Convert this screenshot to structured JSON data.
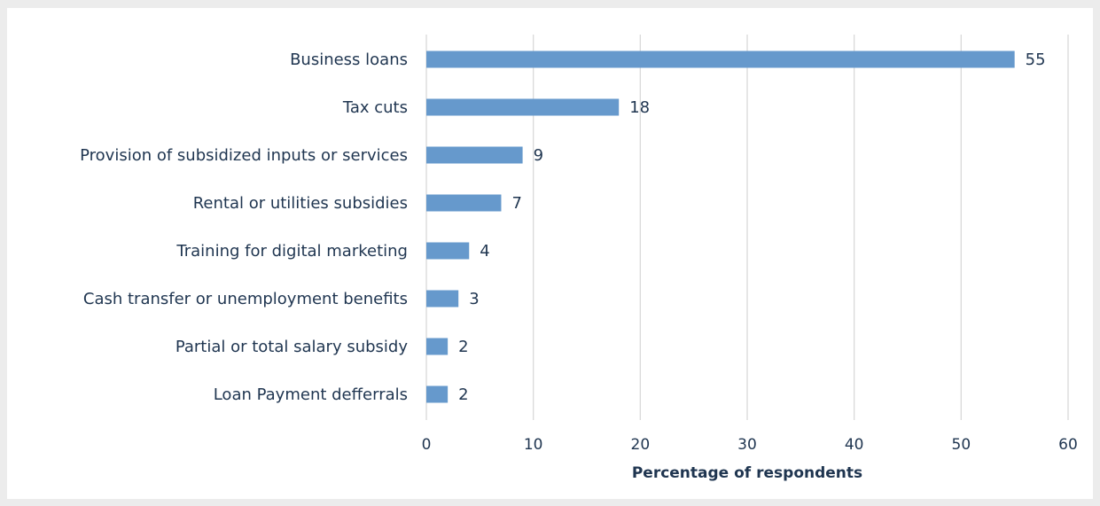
{
  "chart_data": {
    "type": "bar",
    "orientation": "horizontal",
    "categories": [
      "Business loans",
      "Tax cuts",
      "Provision of subsidized inputs or services",
      "Rental or utilities subsidies",
      "Training for digital marketing",
      "Cash transfer or unemployment benefits",
      "Partial or total salary subsidy",
      "Loan Payment defferrals"
    ],
    "values": [
      55,
      18,
      9,
      7,
      4,
      3,
      2,
      2
    ],
    "data_labels": [
      "55",
      "18",
      "9",
      "7",
      "4",
      "3",
      "2",
      "2"
    ],
    "xlabel": "Percentage of respondents",
    "xlim": [
      0,
      60
    ],
    "xticks": [
      0,
      10,
      20,
      30,
      40,
      50,
      60
    ],
    "grid": "vertical",
    "bar_color": "#6699cc",
    "grid_color": "#d9d9d9",
    "text_color": "#1f3550"
  }
}
